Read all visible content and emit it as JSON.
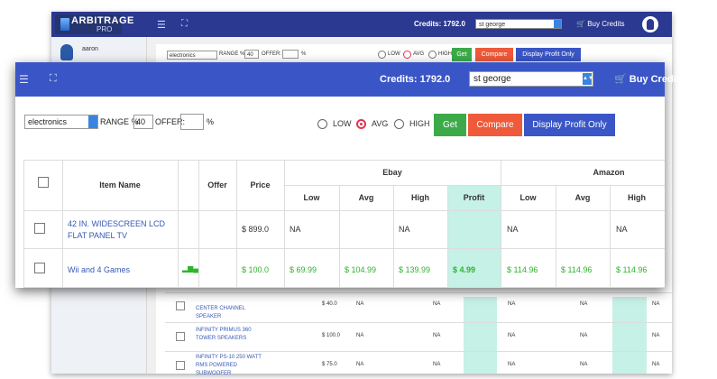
{
  "app": {
    "logo_title": "ARBITRAGE",
    "logo_sub": "PRO",
    "credits": "Credits: 1792.0",
    "location": "st george",
    "buy_credits": "Buy Credits",
    "user": "aaron"
  },
  "controls": {
    "category": "electronics",
    "range_label": "RANGE %",
    "range_value": "40",
    "offer_label": "OFFER:",
    "offer_value": "",
    "percent": "%",
    "low": "LOW",
    "avg": "AVG",
    "high": "HIGH",
    "selected": "AVG",
    "get": "Get",
    "compare": "Compare",
    "display_profit": "Display Profit Only"
  },
  "table": {
    "headers": {
      "item_name": "Item Name",
      "offer": "Offer",
      "price": "Price",
      "ebay": "Ebay",
      "amazon": "Amazon",
      "low": "Low",
      "avg": "Avg",
      "high": "High",
      "profit": "Profit"
    },
    "rows": [
      {
        "name": "42 IN. WIDESCREEN LCD FLAT PANEL TV",
        "price": "$ 899.0",
        "ebay_low": "NA",
        "ebay_avg": "",
        "ebay_high": "NA",
        "profit": "",
        "amz_low": "NA",
        "amz_avg": "",
        "amz_high": "NA"
      },
      {
        "name": "Wii and 4 Games",
        "price": "$ 100.0",
        "ebay_low": "$ 69.99",
        "ebay_avg": "$ 104.99",
        "ebay_high": "$ 139.99",
        "profit": "$ 4.99",
        "amz_low": "$ 114.96",
        "amz_avg": "$ 114.96",
        "amz_high": "$ 114.96"
      }
    ]
  },
  "background_rows": [
    {
      "name": "CENTER CHANNEL SPEAKER",
      "name_top": "",
      "price": "$ 40.0",
      "cells": [
        "NA",
        "NA",
        "NA",
        "NA",
        "NA"
      ]
    },
    {
      "name": "INFINITY PRIMUS 360 TOWER SPEAKERS",
      "price": "$ 100.0",
      "cells": [
        "NA",
        "NA",
        "NA",
        "NA",
        "NA"
      ]
    },
    {
      "name": "INFINITY PS-10 250 WATT RMS POWERED SUBWOOFER",
      "price": "$ 75.0",
      "cells": [
        "NA",
        "NA",
        "NA",
        "NA",
        "NA"
      ]
    }
  ],
  "colors": {
    "header_blue": "#3a56c6",
    "get_green": "#3daa4a",
    "compare_red": "#ee5a3a",
    "profit_blue": "#3a56c6",
    "profit_teal": "#c6f1e6",
    "value_green": "#2db52d"
  },
  "icons": [
    "hamburger-icon",
    "expand-icon",
    "cart-icon",
    "avatar-icon",
    "bar-chart-icon"
  ]
}
